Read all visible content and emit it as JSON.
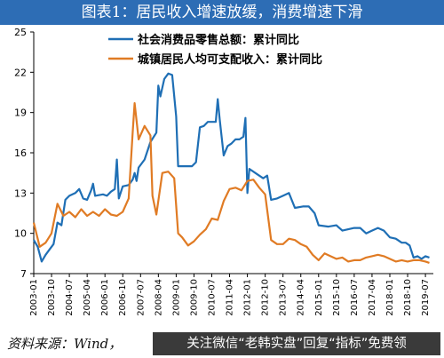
{
  "title": "图表1：居民收入增速放缓，消费增速下滑",
  "source": "资料来源：Wind，",
  "watermark": "关注微信“老韩实盘”回复“指标”免费领",
  "colors": {
    "series1": "#1f6fb5",
    "series2": "#e07b24",
    "title_band": "#2d6db5"
  },
  "chart_data": {
    "type": "line",
    "xlabel": "",
    "ylabel": "",
    "ylim": [
      7,
      25
    ],
    "yticks": [
      7,
      10,
      13,
      16,
      19,
      22,
      25
    ],
    "xticks": [
      "2003-01",
      "2003-10",
      "2004-07",
      "2005-04",
      "2006-01",
      "2006-10",
      "2007-07",
      "2008-04",
      "2009-01",
      "2009-10",
      "2010-07",
      "2011-04",
      "2012-01",
      "2012-10",
      "2013-07",
      "2014-04",
      "2015-01",
      "2015-10",
      "2016-07",
      "2017-04",
      "2018-01",
      "2018-10",
      "2019-07"
    ],
    "grid": false,
    "legend": "top",
    "series": [
      {
        "name": "社会消费品零售总额：累计同比",
        "color": "#1f6fb5",
        "points": [
          [
            "2003-01",
            9.5
          ],
          [
            "2003-03",
            9.0
          ],
          [
            "2003-05",
            7.9
          ],
          [
            "2003-07",
            8.4
          ],
          [
            "2003-09",
            8.8
          ],
          [
            "2003-11",
            9.2
          ],
          [
            "2004-01",
            10.8
          ],
          [
            "2004-03",
            10.6
          ],
          [
            "2004-05",
            12.5
          ],
          [
            "2004-07",
            12.8
          ],
          [
            "2004-10",
            13.0
          ],
          [
            "2004-12",
            13.3
          ],
          [
            "2005-02",
            12.6
          ],
          [
            "2005-04",
            12.5
          ],
          [
            "2005-06",
            13.2
          ],
          [
            "2005-07",
            13.7
          ],
          [
            "2005-08",
            12.8
          ],
          [
            "2005-12",
            12.9
          ],
          [
            "2006-02",
            12.8
          ],
          [
            "2006-04",
            13.1
          ],
          [
            "2006-06",
            13.3
          ],
          [
            "2006-07",
            15.5
          ],
          [
            "2006-08",
            12.6
          ],
          [
            "2006-10",
            13.5
          ],
          [
            "2007-01",
            13.6
          ],
          [
            "2007-03",
            14.0
          ],
          [
            "2007-04",
            14.5
          ],
          [
            "2007-05",
            13.9
          ],
          [
            "2007-06",
            14.9
          ],
          [
            "2007-09",
            15.5
          ],
          [
            "2007-12",
            16.8
          ],
          [
            "2008-03",
            17.5
          ],
          [
            "2008-04",
            21.0
          ],
          [
            "2008-05",
            20.2
          ],
          [
            "2008-07",
            21.5
          ],
          [
            "2008-09",
            21.9
          ],
          [
            "2008-11",
            21.8
          ],
          [
            "2009-01",
            18.7
          ],
          [
            "2009-02",
            15.0
          ],
          [
            "2009-06",
            15.0
          ],
          [
            "2009-09",
            15.0
          ],
          [
            "2009-11",
            15.3
          ],
          [
            "2010-01",
            17.9
          ],
          [
            "2010-03",
            18.0
          ],
          [
            "2010-05",
            18.3
          ],
          [
            "2010-07",
            18.3
          ],
          [
            "2010-09",
            18.3
          ],
          [
            "2010-10",
            20.0
          ],
          [
            "2010-11",
            18.5
          ],
          [
            "2011-01",
            15.8
          ],
          [
            "2011-03",
            16.5
          ],
          [
            "2011-05",
            16.7
          ],
          [
            "2011-07",
            17.0
          ],
          [
            "2011-09",
            17.0
          ],
          [
            "2011-11",
            17.2
          ],
          [
            "2011-12",
            18.6
          ],
          [
            "2012-01",
            13.0
          ],
          [
            "2012-02",
            14.8
          ],
          [
            "2012-06",
            14.4
          ],
          [
            "2012-09",
            14.1
          ],
          [
            "2012-11",
            14.3
          ],
          [
            "2013-01",
            12.5
          ],
          [
            "2013-04",
            12.6
          ],
          [
            "2013-07",
            12.8
          ],
          [
            "2013-10",
            13.0
          ],
          [
            "2014-01",
            11.9
          ],
          [
            "2014-05",
            12.0
          ],
          [
            "2014-08",
            12.0
          ],
          [
            "2014-11",
            11.5
          ],
          [
            "2015-01",
            10.6
          ],
          [
            "2015-06",
            10.5
          ],
          [
            "2015-10",
            10.6
          ],
          [
            "2016-01",
            10.2
          ],
          [
            "2016-04",
            10.3
          ],
          [
            "2016-07",
            10.4
          ],
          [
            "2016-10",
            10.4
          ],
          [
            "2017-01",
            10.0
          ],
          [
            "2017-04",
            10.2
          ],
          [
            "2017-07",
            10.4
          ],
          [
            "2017-10",
            10.2
          ],
          [
            "2018-01",
            9.7
          ],
          [
            "2018-04",
            9.6
          ],
          [
            "2018-07",
            9.3
          ],
          [
            "2018-09",
            9.3
          ],
          [
            "2018-11",
            9.1
          ],
          [
            "2019-01",
            8.2
          ],
          [
            "2019-03",
            8.3
          ],
          [
            "2019-05",
            8.1
          ],
          [
            "2019-07",
            8.3
          ],
          [
            "2019-09",
            8.2
          ]
        ]
      },
      {
        "name": "城镇居民人均可支配收入：累计同比",
        "color": "#e07b24",
        "points": [
          [
            "2003-01",
            10.8
          ],
          [
            "2003-04",
            9.0
          ],
          [
            "2003-07",
            9.3
          ],
          [
            "2003-10",
            10.0
          ],
          [
            "2004-01",
            12.2
          ],
          [
            "2004-04",
            11.3
          ],
          [
            "2004-07",
            11.6
          ],
          [
            "2004-10",
            11.2
          ],
          [
            "2005-01",
            11.8
          ],
          [
            "2005-04",
            11.3
          ],
          [
            "2005-07",
            11.6
          ],
          [
            "2005-10",
            11.3
          ],
          [
            "2006-01",
            11.8
          ],
          [
            "2006-04",
            11.4
          ],
          [
            "2006-07",
            11.3
          ],
          [
            "2006-10",
            11.6
          ],
          [
            "2007-01",
            12.6
          ],
          [
            "2007-03",
            17.5
          ],
          [
            "2007-04",
            19.7
          ],
          [
            "2007-06",
            17.0
          ],
          [
            "2007-09",
            18.0
          ],
          [
            "2007-12",
            17.3
          ],
          [
            "2008-01",
            12.8
          ],
          [
            "2008-03",
            11.4
          ],
          [
            "2008-06",
            14.5
          ],
          [
            "2008-09",
            14.6
          ],
          [
            "2008-12",
            14.1
          ],
          [
            "2009-02",
            10.0
          ],
          [
            "2009-04",
            9.7
          ],
          [
            "2009-07",
            9.1
          ],
          [
            "2009-10",
            9.4
          ],
          [
            "2010-01",
            9.9
          ],
          [
            "2010-04",
            10.3
          ],
          [
            "2010-07",
            11.1
          ],
          [
            "2010-10",
            11.0
          ],
          [
            "2011-01",
            12.4
          ],
          [
            "2011-04",
            13.3
          ],
          [
            "2011-07",
            13.4
          ],
          [
            "2011-10",
            13.2
          ],
          [
            "2012-01",
            13.9
          ],
          [
            "2012-04",
            14.0
          ],
          [
            "2012-07",
            13.4
          ],
          [
            "2012-10",
            12.9
          ],
          [
            "2013-01",
            9.5
          ],
          [
            "2013-04",
            9.2
          ],
          [
            "2013-07",
            9.2
          ],
          [
            "2013-10",
            9.6
          ],
          [
            "2014-01",
            9.5
          ],
          [
            "2014-04",
            9.2
          ],
          [
            "2014-07",
            9.0
          ],
          [
            "2014-10",
            8.4
          ],
          [
            "2015-01",
            8.0
          ],
          [
            "2015-04",
            8.5
          ],
          [
            "2015-07",
            8.3
          ],
          [
            "2015-10",
            8.1
          ],
          [
            "2016-01",
            8.2
          ],
          [
            "2016-04",
            7.9
          ],
          [
            "2016-07",
            8.0
          ],
          [
            "2016-10",
            8.0
          ],
          [
            "2017-01",
            8.2
          ],
          [
            "2017-04",
            8.3
          ],
          [
            "2017-07",
            8.4
          ],
          [
            "2017-10",
            8.3
          ],
          [
            "2018-01",
            8.1
          ],
          [
            "2018-04",
            7.9
          ],
          [
            "2018-07",
            8.0
          ],
          [
            "2018-10",
            7.9
          ],
          [
            "2019-01",
            8.0
          ],
          [
            "2019-04",
            8.0
          ],
          [
            "2019-07",
            7.9
          ],
          [
            "2019-09",
            7.8
          ]
        ]
      }
    ]
  }
}
